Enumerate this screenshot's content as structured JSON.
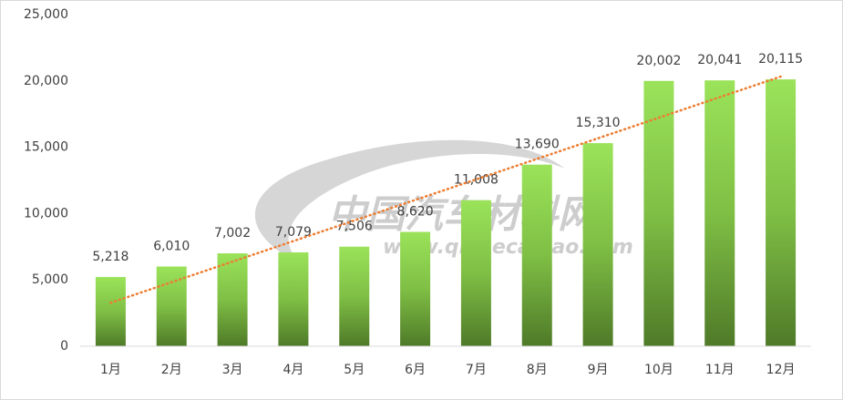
{
  "chart_data": {
    "type": "bar",
    "categories": [
      "1月",
      "2月",
      "3月",
      "4月",
      "5月",
      "6月",
      "7月",
      "8月",
      "9月",
      "10月",
      "11月",
      "12月"
    ],
    "values": [
      5218,
      6010,
      7002,
      7079,
      7506,
      8620,
      11008,
      13690,
      15310,
      20002,
      20041,
      20115
    ],
    "value_labels": [
      "5,218",
      "6,010",
      "7,002",
      "7,079",
      "7,506",
      "8,620",
      "11,008",
      "13,690",
      "15,310",
      "20,002",
      "20,041",
      "20,115"
    ],
    "color": "#92d050",
    "trendline": {
      "type": "linear",
      "color": "#ed7d31"
    },
    "ylim": [
      0,
      25000
    ],
    "yticks": [
      0,
      {
        "value": 5000,
        "label": "5,000"
      },
      {
        "value": 10000,
        "label": "10,000"
      },
      {
        "value": 15000,
        "label": "15,000"
      },
      {
        "value": 20000,
        "label": "20,000"
      },
      {
        "value": 25000,
        "label": "25,000"
      }
    ],
    "grid": false,
    "watermark": {
      "name": "中国汽车材料网",
      "url": "www.qichecailiao.com"
    }
  }
}
